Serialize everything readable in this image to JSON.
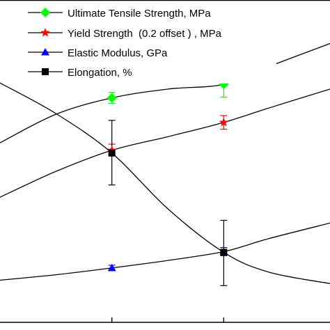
{
  "chart_data": {
    "type": "line",
    "title": "",
    "xlabel": "",
    "ylabel": "",
    "grid": false,
    "legend_position": "top-left",
    "x_ticks": [
      1,
      2
    ],
    "xlim": [
      0,
      2.95
    ],
    "ylim": [
      0,
      474
    ],
    "series": [
      {
        "name": "Ultimate Tensile Strength, MPa",
        "color": "#00ff00",
        "marker": "diamond",
        "points": [
          {
            "x": 1,
            "y": 330
          },
          {
            "x": 2,
            "y": 350
          }
        ],
        "errors": [
          {
            "x": 1,
            "lo": 322,
            "hi": 338
          },
          {
            "x": 2,
            "y": 350,
            "lo": 331,
            "hi": 369
          }
        ],
        "curve": [
          [
            0,
            264
          ],
          [
            0.5,
            306
          ],
          [
            1,
            330
          ],
          [
            1.5,
            343
          ],
          [
            2,
            350
          ],
          [
            2.4,
            376
          ],
          [
            2.95,
            410
          ]
        ]
      },
      {
        "name": "Yield Strength  (0.2 offset ) , MPa",
        "color": "#ff0000",
        "marker": "star",
        "points": [
          {
            "x": 1,
            "y": 253
          },
          {
            "x": 2,
            "y": 294
          }
        ],
        "errors": [
          {
            "x": 1,
            "lo": 246,
            "hi": 262
          },
          {
            "x": 2,
            "lo": 284,
            "hi": 304
          }
        ],
        "curve": [
          [
            0,
            184
          ],
          [
            0.5,
            222
          ],
          [
            1,
            253
          ],
          [
            1.5,
            273
          ],
          [
            2,
            294
          ],
          [
            2.4,
            315
          ],
          [
            2.95,
            343
          ]
        ]
      },
      {
        "name": "Elastic Modulus, GPa",
        "color": "#0000ff",
        "marker": "triangle",
        "points": [
          {
            "x": 1,
            "y": 80
          },
          {
            "x": 2,
            "y": 104
          }
        ],
        "errors": [
          {
            "x": 1,
            "lo": 76,
            "hi": 84
          },
          {
            "x": 2,
            "lo": 98,
            "hi": 110
          }
        ],
        "curve": [
          [
            0,
            62
          ],
          [
            0.5,
            70
          ],
          [
            1,
            80
          ],
          [
            1.5,
            91
          ],
          [
            2,
            104
          ],
          [
            2.4,
            123
          ],
          [
            2.95,
            146
          ]
        ]
      },
      {
        "name": "Elongation, %",
        "color": "#000000",
        "marker": "square",
        "points": [
          {
            "x": 1,
            "y": 249
          },
          {
            "x": 2,
            "y": 103
          }
        ],
        "errors": [
          {
            "x": 1,
            "lo": 202,
            "hi": 297
          },
          {
            "x": 2,
            "lo": 54,
            "hi": 150
          }
        ],
        "curve": [
          [
            0,
            352
          ],
          [
            0.5,
            307
          ],
          [
            1,
            249
          ],
          [
            1.5,
            167
          ],
          [
            2,
            103
          ],
          [
            2.4,
            74
          ],
          [
            2.95,
            57
          ]
        ]
      }
    ]
  }
}
